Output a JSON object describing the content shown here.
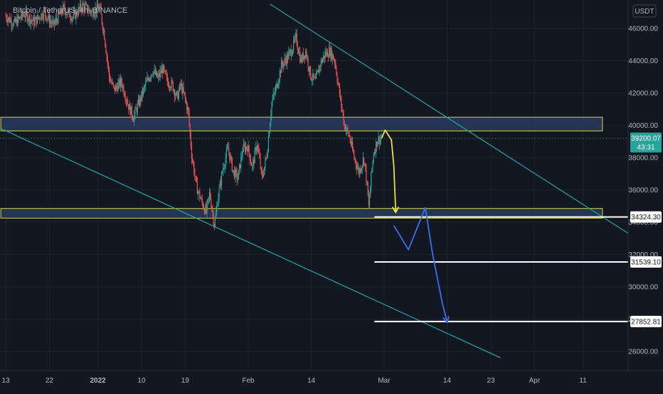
{
  "header": {
    "symbol": "Bitcoin / TetherUS",
    "interval": "4h",
    "exchange": "BINANCE"
  },
  "currency_label": "USDT",
  "colors": {
    "background": "#131722",
    "candle_up": "#26a69a",
    "candle_down": "#ef5350",
    "trendline": "#1ea7a0",
    "zone_fill": "#2a3a5c",
    "zone_border": "#d4d24a",
    "level_line": "#ffffff",
    "forecast_yellow": "#e3e34c",
    "forecast_blue": "#3d6ef2",
    "axis_text": "#b2b5be",
    "last_price_bg": "#26a69a"
  },
  "chart_data": {
    "type": "candlestick",
    "symbol": "Bitcoin / TetherUS",
    "interval": "4h",
    "exchange": "BINANCE",
    "ylim": [
      24800,
      48000
    ],
    "y_ticks": [
      26000,
      28000,
      30000,
      32000,
      34000,
      36000,
      38000,
      40000,
      42000,
      44000,
      46000
    ],
    "x_ticks": [
      {
        "label": "13",
        "day": 0
      },
      {
        "label": "22",
        "day": 9
      },
      {
        "label": "2022",
        "day": 19,
        "bold": true
      },
      {
        "label": "10",
        "day": 28
      },
      {
        "label": "19",
        "day": 37
      },
      {
        "label": "Feb",
        "day": 50
      },
      {
        "label": "14",
        "day": 63
      },
      {
        "label": "Mar",
        "day": 78
      },
      {
        "label": "14",
        "day": 91
      },
      {
        "label": "23",
        "day": 100
      },
      {
        "label": "Apr",
        "day": 109
      },
      {
        "label": "11",
        "day": 119
      }
    ],
    "price_path": [
      [
        0,
        46800
      ],
      [
        2,
        46300
      ],
      [
        4,
        46900
      ],
      [
        6,
        46400
      ],
      [
        8,
        47000
      ],
      [
        10,
        46200
      ],
      [
        12,
        47200
      ],
      [
        14,
        46700
      ],
      [
        16,
        47400
      ],
      [
        18,
        47000
      ],
      [
        19.5,
        47300
      ],
      [
        20.5,
        45600
      ],
      [
        21.5,
        43000
      ],
      [
        22.5,
        42200
      ],
      [
        24,
        42700
      ],
      [
        25.5,
        41200
      ],
      [
        26.5,
        40500
      ],
      [
        27.5,
        41300
      ],
      [
        28.5,
        42100
      ],
      [
        29.5,
        42900
      ],
      [
        30.5,
        43400
      ],
      [
        31.5,
        42900
      ],
      [
        32.5,
        43500
      ],
      [
        33.5,
        42700
      ],
      [
        34.5,
        42500
      ],
      [
        35.5,
        41700
      ],
      [
        36.2,
        42500
      ],
      [
        37,
        41800
      ],
      [
        37.8,
        40800
      ],
      [
        38.5,
        38200
      ],
      [
        39.5,
        36200
      ],
      [
        40.5,
        35300
      ],
      [
        41.5,
        34600
      ],
      [
        42.2,
        35800
      ],
      [
        42.8,
        34600
      ],
      [
        43.2,
        33800
      ],
      [
        44,
        35700
      ],
      [
        45,
        37400
      ],
      [
        46,
        38600
      ],
      [
        47,
        37200
      ],
      [
        48,
        36700
      ],
      [
        49,
        38500
      ],
      [
        50,
        38700
      ],
      [
        51,
        37400
      ],
      [
        52,
        38900
      ],
      [
        53,
        36700
      ],
      [
        54,
        38200
      ],
      [
        55,
        41400
      ],
      [
        56,
        42400
      ],
      [
        57,
        43700
      ],
      [
        58,
        44100
      ],
      [
        59,
        44600
      ],
      [
        60,
        45400
      ],
      [
        61,
        44000
      ],
      [
        62,
        44600
      ],
      [
        63,
        43100
      ],
      [
        64,
        42700
      ],
      [
        65,
        43800
      ],
      [
        66,
        44400
      ],
      [
        67,
        44600
      ],
      [
        68,
        44000
      ],
      [
        69,
        41900
      ],
      [
        70,
        40000
      ],
      [
        71,
        39300
      ],
      [
        72,
        38000
      ],
      [
        73,
        37100
      ],
      [
        74,
        38000
      ],
      [
        74.6,
        36500
      ],
      [
        75,
        34900
      ],
      [
        75.5,
        36800
      ],
      [
        76,
        38300
      ],
      [
        76.8,
        39100
      ],
      [
        77.5,
        39200
      ]
    ],
    "current_price": 39200.07,
    "countdown": "43:31",
    "price_labels": [
      34324.3,
      31539.1,
      27852.81
    ],
    "zones": [
      {
        "day_from": -1,
        "day_to": 123,
        "price_low": 39650,
        "price_high": 40500
      },
      {
        "day_from": -1,
        "day_to": 123,
        "price_low": 34250,
        "price_high": 34850
      }
    ],
    "horizontal_levels": [
      {
        "price": 34324.3,
        "day_from": 76,
        "day_to": 145
      },
      {
        "price": 31539.1,
        "day_from": 76,
        "day_to": 145
      },
      {
        "price": 27852.81,
        "day_from": 76,
        "day_to": 145
      }
    ],
    "trendlines": [
      {
        "from": [
          54.5,
          47500
        ],
        "to": [
          145,
          30100
        ]
      },
      {
        "from": [
          -1,
          39800
        ],
        "to": [
          102,
          25600
        ]
      }
    ],
    "forecast_yellow": [
      [
        77.5,
        39200
      ],
      [
        78.2,
        39700
      ],
      [
        79.5,
        39100
      ],
      [
        80,
        37500
      ],
      [
        80.4,
        34600
      ]
    ],
    "forecast_blue": [
      [
        80,
        33800
      ],
      [
        83,
        32300
      ],
      [
        86.5,
        34900
      ],
      [
        88,
        32000
      ],
      [
        90,
        29000
      ],
      [
        91,
        27800
      ]
    ]
  }
}
